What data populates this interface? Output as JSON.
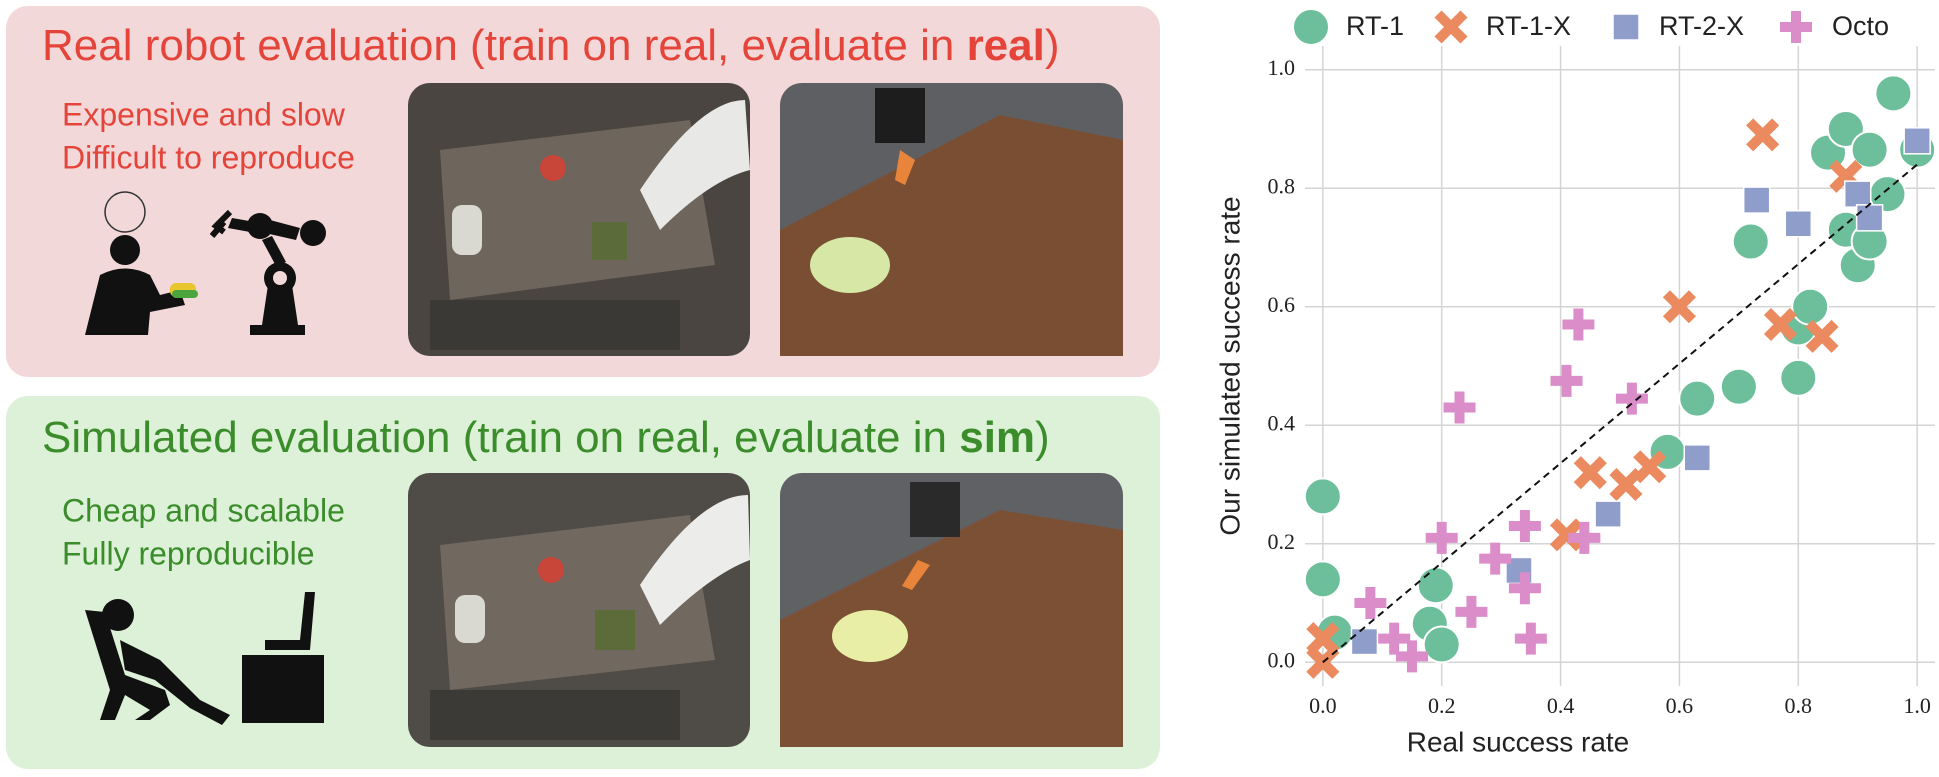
{
  "panels": [
    {
      "title_start": "Real robot evaluation (train on real, evaluate in ",
      "title_emphasis": "real",
      "title_end": ")",
      "lines": [
        "Expensive and slow",
        "Difficult to reproduce"
      ]
    },
    {
      "title_start": "Simulated evaluation (train on real, evaluate in ",
      "title_emphasis": "sim",
      "title_end": ")",
      "lines": [
        "Cheap and scalable",
        "Fully reproducible"
      ]
    }
  ],
  "chart_data": {
    "type": "scatter",
    "x_label": "Real success rate",
    "y_label": "Our simulated success rate",
    "xlim": [
      -0.03,
      1.03
    ],
    "ylim": [
      -0.04,
      1.04
    ],
    "xticks": [
      {
        "value": 0,
        "label": "0.0"
      },
      0.2,
      0.4,
      0.6,
      0.8,
      {
        "value": 1,
        "label": "1.0"
      }
    ],
    "yticks": [
      {
        "value": 0,
        "label": "0.0"
      },
      0.2,
      0.4,
      0.6,
      0.8,
      {
        "value": 1,
        "label": "1.0"
      }
    ],
    "grid": true,
    "legend": "top",
    "fit_line": {
      "x": [
        0,
        1
      ],
      "y": [
        0,
        0.84
      ]
    },
    "series": [
      {
        "name": "RT-1",
        "color": "#6dbf9c",
        "marker": "circle",
        "x": [
          0.0,
          0.0,
          0.02,
          0.19,
          0.18,
          0.2,
          0.58,
          0.63,
          0.7,
          0.72,
          0.8,
          0.8,
          0.82,
          0.85,
          0.88,
          0.88,
          0.9,
          0.92,
          0.92,
          0.95,
          0.96,
          1.0
        ],
        "values": [
          0.28,
          0.14,
          0.05,
          0.13,
          0.065,
          0.03,
          0.355,
          0.445,
          0.465,
          0.71,
          0.48,
          0.565,
          0.6,
          0.86,
          0.9,
          0.73,
          0.67,
          0.71,
          0.865,
          0.79,
          0.96,
          0.865
        ]
      },
      {
        "name": "RT-1-X",
        "color": "#ea8a5e",
        "marker": "x",
        "x": [
          0.0,
          0.0,
          0.41,
          0.45,
          0.51,
          0.55,
          0.6,
          0.74,
          0.77,
          0.84,
          0.88
        ],
        "values": [
          0.04,
          0.0,
          0.215,
          0.32,
          0.3,
          0.33,
          0.6,
          0.89,
          0.57,
          0.55,
          0.82
        ]
      },
      {
        "name": "RT-2-X",
        "color": "#8f9dca",
        "marker": "square",
        "x": [
          0.07,
          0.33,
          0.48,
          0.63,
          0.73,
          0.8,
          0.9,
          0.92,
          1.0
        ],
        "values": [
          0.035,
          0.155,
          0.25,
          0.345,
          0.78,
          0.74,
          0.79,
          0.75,
          0.88
        ]
      },
      {
        "name": "Octo",
        "color": "#db8dca",
        "marker": "plus",
        "x": [
          0.08,
          0.12,
          0.15,
          0.2,
          0.23,
          0.25,
          0.29,
          0.34,
          0.34,
          0.35,
          0.41,
          0.43,
          0.44,
          0.52
        ],
        "values": [
          0.1,
          0.04,
          0.01,
          0.21,
          0.43,
          0.085,
          0.175,
          0.23,
          0.125,
          0.04,
          0.475,
          0.57,
          0.21,
          0.445
        ]
      }
    ]
  }
}
